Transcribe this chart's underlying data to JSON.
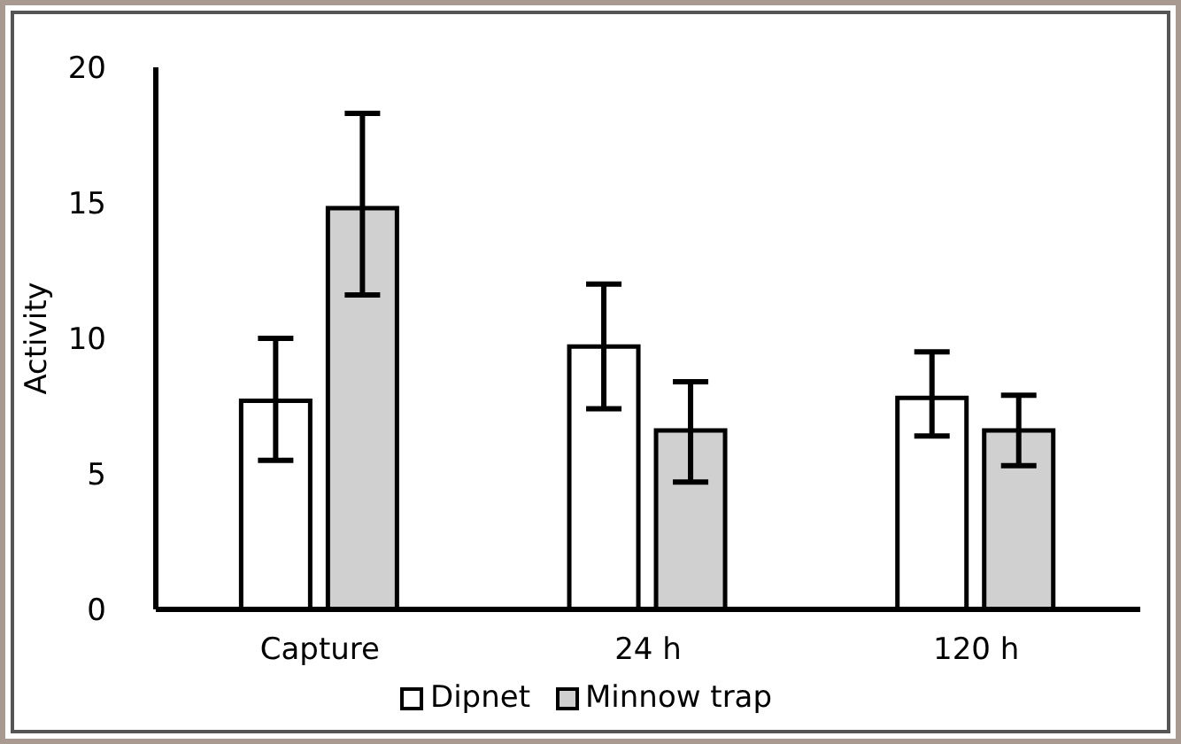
{
  "chart_data": {
    "type": "bar",
    "ylabel": "Activity",
    "categories": [
      "Capture",
      "24 h",
      "120 h"
    ],
    "series": [
      {
        "name": "Dipnet",
        "color": "#ffffff",
        "values": [
          7.7,
          9.7,
          7.8
        ],
        "errors": [
          [
            5.5,
            10.0
          ],
          [
            7.4,
            12.0
          ],
          [
            6.4,
            9.5
          ]
        ]
      },
      {
        "name": "Minnow trap",
        "color": "#d0d0d0",
        "values": [
          14.8,
          6.6,
          6.6
        ],
        "errors": [
          [
            11.6,
            18.3
          ],
          [
            4.7,
            8.4
          ],
          [
            5.3,
            7.9
          ]
        ]
      }
    ],
    "ylim": [
      0,
      20
    ],
    "yticks": [
      0,
      5,
      10,
      15,
      20
    ],
    "grid": false,
    "legend": "bottom"
  }
}
